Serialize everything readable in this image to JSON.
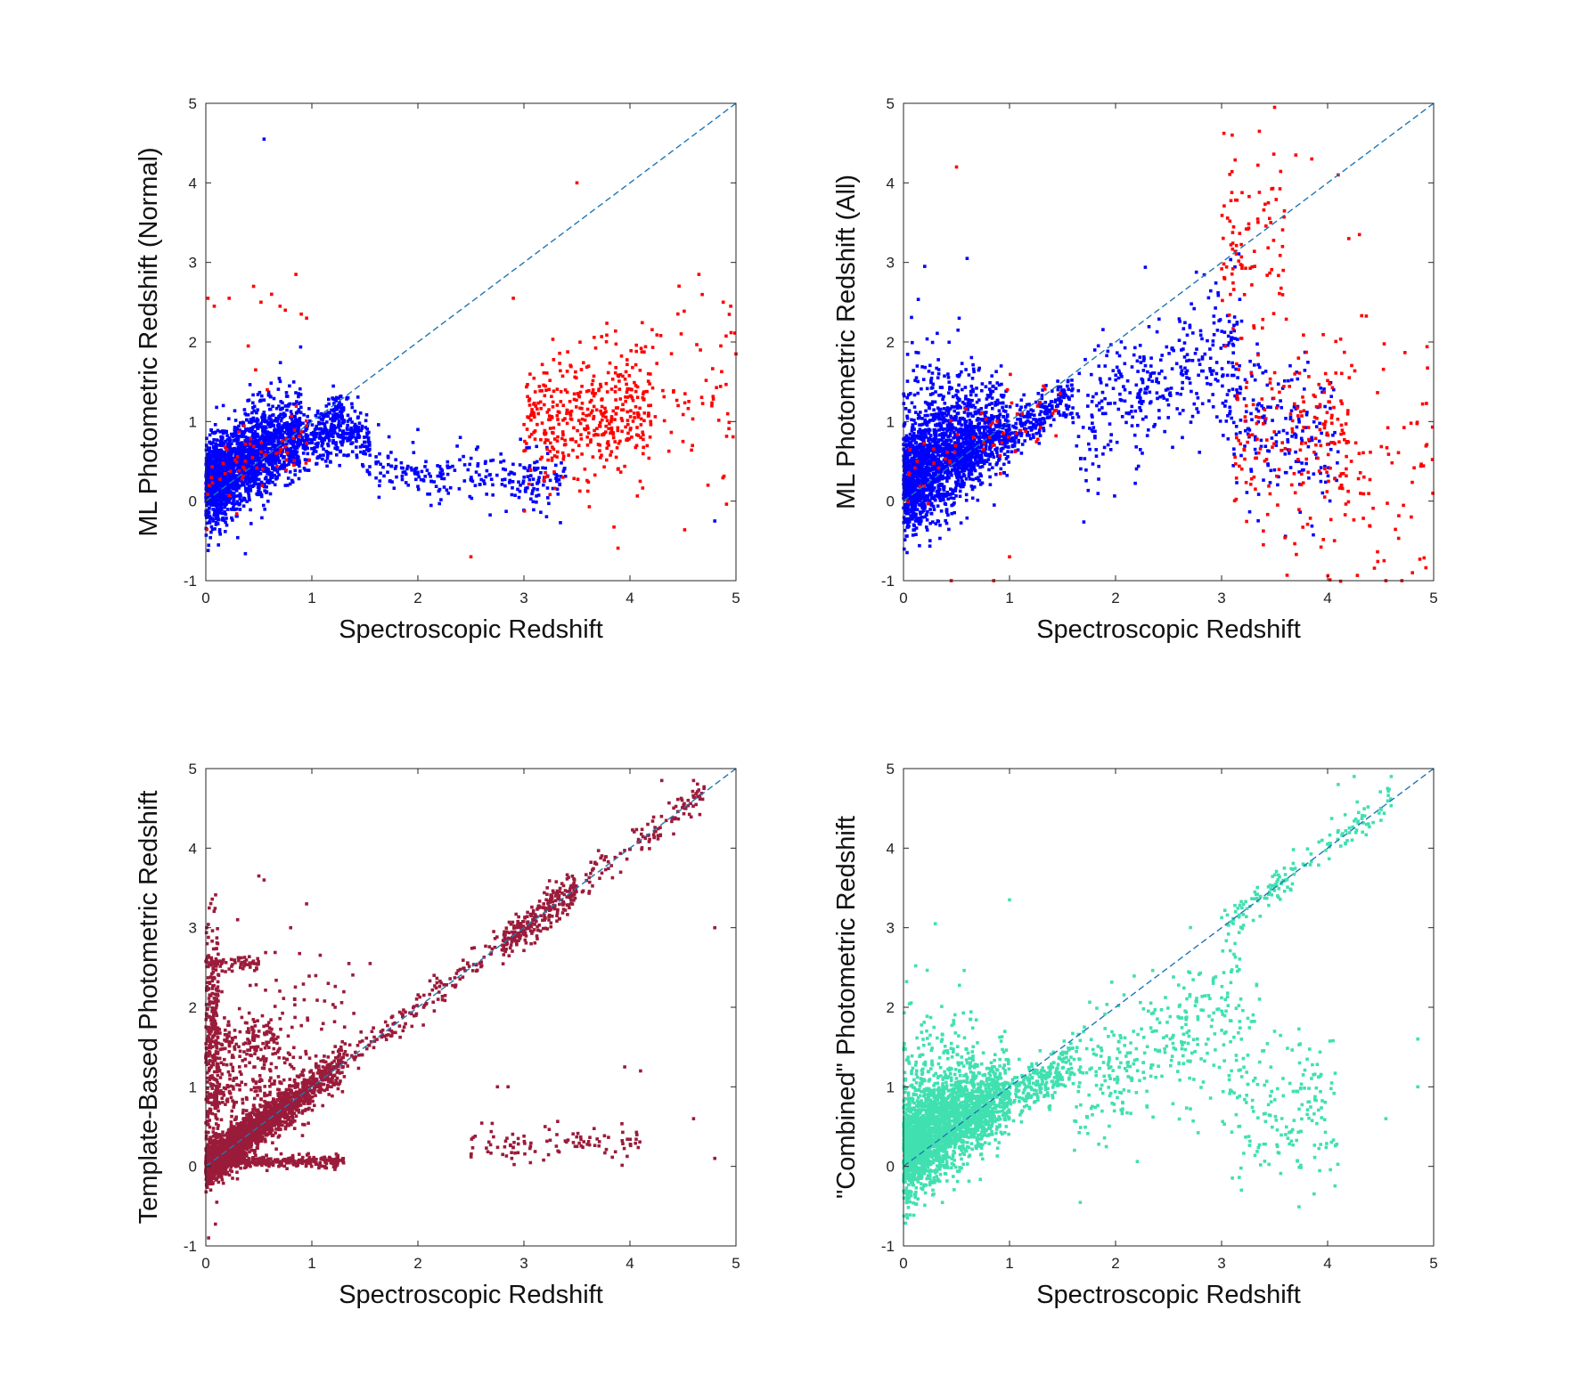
{
  "chart_data": [
    {
      "type": "scatter",
      "id": "ml-normal",
      "title": "",
      "xlabel": "Spectroscopic Redshift",
      "ylabel": "ML Photometric Redshift (Normal)",
      "xlim": [
        0,
        5
      ],
      "ylim": [
        -1,
        5
      ],
      "xticks": [
        0,
        1,
        2,
        3,
        4,
        5
      ],
      "yticks": [
        -1,
        0,
        1,
        2,
        3,
        4,
        5
      ],
      "reference_line": {
        "style": "dashed",
        "color": "#1f77b4",
        "from": [
          0,
          0
        ],
        "to": [
          5,
          5
        ]
      },
      "series": [
        {
          "name": "normal",
          "color": "#0000ff",
          "clusters": [
            {
              "n": 1700,
              "x_range": [
                0,
                0.9
              ],
              "x_dist": "exp",
              "x_scale": 0.45,
              "slope": 0.85,
              "intercept": 0.2,
              "y_sd": 0.28
            },
            {
              "n": 500,
              "x_range": [
                0.4,
                1.3
              ],
              "x_dist": "uniform",
              "slope": 0.6,
              "intercept": 0.2,
              "y_sd": 0.18
            },
            {
              "n": 150,
              "x_range": [
                1.2,
                1.55
              ],
              "x_dist": "uniform",
              "slope": -1.2,
              "intercept": 2.5,
              "y_sd": 0.18
            },
            {
              "n": 250,
              "x_range": [
                1.6,
                3.4
              ],
              "x_dist": "uniform",
              "slope": -0.1,
              "intercept": 0.55,
              "y_sd": 0.18
            }
          ],
          "points": [
            [
              0.55,
              4.55
            ],
            [
              4.8,
              -0.25
            ],
            [
              2.0,
              0.9
            ],
            [
              2.4,
              0.8
            ]
          ]
        },
        {
          "name": "outliers",
          "color": "#ff0000",
          "clusters": [
            {
              "n": 430,
              "x_range": [
                3.0,
                4.2
              ],
              "x_dist": "uniform",
              "slope": 0.2,
              "intercept": 0.35,
              "y_sd": 0.42
            },
            {
              "n": 60,
              "x_range": [
                4.2,
                5.0
              ],
              "x_dist": "uniform",
              "slope": 0.0,
              "intercept": 1.4,
              "y_sd": 0.6
            },
            {
              "n": 60,
              "x_range": [
                0.0,
                1.0
              ],
              "x_dist": "uniform",
              "slope": 0.4,
              "intercept": 0.3,
              "y_sd": 0.25
            }
          ],
          "points": [
            [
              0.02,
              2.55
            ],
            [
              0.08,
              2.45
            ],
            [
              0.22,
              2.55
            ],
            [
              0.45,
              2.7
            ],
            [
              0.52,
              2.5
            ],
            [
              0.62,
              2.6
            ],
            [
              0.7,
              2.45
            ],
            [
              0.75,
              2.4
            ],
            [
              0.85,
              2.85
            ],
            [
              0.9,
              2.35
            ],
            [
              0.95,
              2.3
            ],
            [
              0.4,
              1.95
            ],
            [
              0.47,
              1.65
            ],
            [
              0.58,
              1.4
            ],
            [
              3.5,
              4.0
            ],
            [
              2.5,
              -0.7
            ],
            [
              2.9,
              2.55
            ],
            [
              4.65,
              2.85
            ],
            [
              4.88,
              2.5
            ],
            [
              4.95,
              2.45
            ],
            [
              5.0,
              1.85
            ],
            [
              4.5,
              0.75
            ]
          ]
        }
      ]
    },
    {
      "type": "scatter",
      "id": "ml-all",
      "title": "",
      "xlabel": "Spectroscopic Redshift",
      "ylabel": "ML Photometric Redshift (All)",
      "xlim": [
        0,
        5
      ],
      "ylim": [
        -1,
        5
      ],
      "xticks": [
        0,
        1,
        2,
        3,
        4,
        5
      ],
      "yticks": [
        -1,
        0,
        1,
        2,
        3,
        4,
        5
      ],
      "reference_line": {
        "style": "dashed",
        "color": "#1f77b4",
        "from": [
          0,
          0
        ],
        "to": [
          5,
          5
        ]
      },
      "series": [
        {
          "name": "normal",
          "color": "#0000ff",
          "clusters": [
            {
              "n": 1600,
              "x_range": [
                0,
                1.0
              ],
              "x_dist": "exp",
              "x_scale": 0.45,
              "slope": 0.85,
              "intercept": 0.2,
              "y_sd": 0.32
            },
            {
              "n": 450,
              "x_range": [
                0.5,
                1.6
              ],
              "x_dist": "uniform",
              "slope": 0.75,
              "intercept": 0.1,
              "y_sd": 0.15
            },
            {
              "n": 350,
              "x_range": [
                1.6,
                3.2
              ],
              "x_dist": "uniform",
              "slope": 0.7,
              "intercept": -0.2,
              "y_sd": 0.45
            },
            {
              "n": 200,
              "x_range": [
                3.0,
                4.1
              ],
              "x_dist": "uniform",
              "slope": -0.3,
              "intercept": 2.0,
              "y_sd": 0.45
            },
            {
              "n": 250,
              "x_range": [
                0.0,
                0.7
              ],
              "x_dist": "uniform",
              "slope": 0.0,
              "intercept": 1.1,
              "y_sd": 0.45
            }
          ],
          "points": [
            [
              0.6,
              3.05
            ],
            [
              0.2,
              2.95
            ]
          ]
        },
        {
          "name": "outliers",
          "color": "#ff0000",
          "clusters": [
            {
              "n": 200,
              "x_range": [
                3.1,
                4.2
              ],
              "x_dist": "uniform",
              "slope": 0.0,
              "intercept": 0.75,
              "y_sd": 0.65
            },
            {
              "n": 90,
              "x_range": [
                3.0,
                3.6
              ],
              "x_dist": "uniform",
              "slope": 0.0,
              "intercept": 3.3,
              "y_sd": 0.55
            },
            {
              "n": 80,
              "x_range": [
                4.1,
                5.0
              ],
              "x_dist": "uniform",
              "slope": -0.6,
              "intercept": 3.1,
              "y_sd": 0.9
            },
            {
              "n": 60,
              "x_range": [
                0.0,
                1.5
              ],
              "x_dist": "uniform",
              "slope": 0.6,
              "intercept": 0.35,
              "y_sd": 0.25
            }
          ],
          "points": [
            [
              0.5,
              4.2
            ],
            [
              3.1,
              4.6
            ],
            [
              3.5,
              4.95
            ],
            [
              3.7,
              4.35
            ],
            [
              3.85,
              4.3
            ],
            [
              4.1,
              4.1
            ],
            [
              4.3,
              3.35
            ],
            [
              4.2,
              3.3
            ],
            [
              0.45,
              -1.0
            ],
            [
              0.85,
              -1.0
            ],
            [
              1.0,
              -0.7
            ],
            [
              4.55,
              -1.0
            ],
            [
              4.7,
              -1.0
            ],
            [
              4.8,
              -0.9
            ]
          ]
        }
      ]
    },
    {
      "type": "scatter",
      "id": "template",
      "title": "",
      "xlabel": "Spectroscopic Redshift",
      "ylabel": "Template-Based Photometric Redshift",
      "xlim": [
        0,
        5
      ],
      "ylim": [
        -1,
        5
      ],
      "xticks": [
        0,
        1,
        2,
        3,
        4,
        5
      ],
      "yticks": [
        -1,
        0,
        1,
        2,
        3,
        4,
        5
      ],
      "reference_line": {
        "style": "dashed",
        "color": "#1f77b4",
        "from": [
          0,
          0
        ],
        "to": [
          5,
          5
        ]
      },
      "series": [
        {
          "name": "template",
          "color": "#9b1b3a",
          "clusters": [
            {
              "n": 2600,
              "x_range": [
                0,
                1.3
              ],
              "x_dist": "exp",
              "x_scale": 0.4,
              "slope": 1.0,
              "intercept": 0.0,
              "y_sd": 0.12
            },
            {
              "n": 350,
              "x_range": [
                1.0,
                4.7
              ],
              "x_dist": "uniform",
              "slope": 1.0,
              "intercept": 0.0,
              "y_sd": 0.1
            },
            {
              "n": 200,
              "x_range": [
                2.8,
                3.5
              ],
              "x_dist": "uniform",
              "slope": 1.0,
              "intercept": 0.0,
              "y_sd": 0.12
            },
            {
              "n": 350,
              "x_range": [
                0.0,
                1.3
              ],
              "x_dist": "uniform",
              "slope": 0.0,
              "intercept": 0.06,
              "y_sd": 0.04
            },
            {
              "n": 300,
              "x_range": [
                0.0,
                0.12
              ],
              "x_dist": "uniform",
              "slope": 0.0,
              "intercept": 1.5,
              "y_sd": 0.75
            },
            {
              "n": 250,
              "x_range": [
                0.0,
                1.0
              ],
              "x_dist": "uniform",
              "slope": 0.0,
              "intercept": 1.0,
              "y_sd": 0.3
            },
            {
              "n": 120,
              "x_range": [
                0.1,
                0.7
              ],
              "x_dist": "uniform",
              "slope": 0.0,
              "intercept": 1.55,
              "y_sd": 0.15
            },
            {
              "n": 70,
              "x_range": [
                0.0,
                0.5
              ],
              "x_dist": "uniform",
              "slope": 0.0,
              "intercept": 2.55,
              "y_sd": 0.05
            },
            {
              "n": 100,
              "x_range": [
                2.5,
                4.1
              ],
              "x_dist": "uniform",
              "slope": 0.0,
              "intercept": 0.3,
              "y_sd": 0.12
            },
            {
              "n": 60,
              "x_range": [
                0.0,
                1.5
              ],
              "x_dist": "uniform",
              "slope": 0.0,
              "intercept": 2.0,
              "y_sd": 0.35
            }
          ],
          "points": [
            [
              0.5,
              3.65
            ],
            [
              0.55,
              3.6
            ],
            [
              0.95,
              3.3
            ],
            [
              0.8,
              3.0
            ],
            [
              0.3,
              3.1
            ],
            [
              1.35,
              2.55
            ],
            [
              1.55,
              2.55
            ],
            [
              2.75,
              1.0
            ],
            [
              2.85,
              1.0
            ],
            [
              3.95,
              1.25
            ],
            [
              4.1,
              1.2
            ],
            [
              4.6,
              0.6
            ],
            [
              4.8,
              3.0
            ],
            [
              4.8,
              0.1
            ],
            [
              4.6,
              4.85
            ],
            [
              4.3,
              4.85
            ],
            [
              2.8,
              0.15
            ],
            [
              3.2,
              0.5
            ],
            [
              3.5,
              0.25
            ]
          ]
        }
      ]
    },
    {
      "type": "scatter",
      "id": "combined",
      "title": "",
      "xlabel": "Spectroscopic Redshift",
      "ylabel": "\"Combined\" Photometric Redshift",
      "xlim": [
        0,
        5
      ],
      "ylim": [
        -1,
        5
      ],
      "xticks": [
        0,
        1,
        2,
        3,
        4,
        5
      ],
      "yticks": [
        -1,
        0,
        1,
        2,
        3,
        4,
        5
      ],
      "reference_line": {
        "style": "dashed",
        "color": "#1f77b4",
        "from": [
          0,
          0
        ],
        "to": [
          5,
          5
        ]
      },
      "series": [
        {
          "name": "combined",
          "color": "#40e0b0",
          "clusters": [
            {
              "n": 2200,
              "x_range": [
                0,
                1.0
              ],
              "x_dist": "exp",
              "x_scale": 0.45,
              "slope": 0.8,
              "intercept": 0.2,
              "y_sd": 0.3
            },
            {
              "n": 450,
              "x_range": [
                0.5,
                1.6
              ],
              "x_dist": "uniform",
              "slope": 0.75,
              "intercept": 0.1,
              "y_sd": 0.15
            },
            {
              "n": 320,
              "x_range": [
                1.6,
                3.2
              ],
              "x_dist": "uniform",
              "slope": 0.7,
              "intercept": -0.2,
              "y_sd": 0.45
            },
            {
              "n": 200,
              "x_range": [
                3.0,
                4.1
              ],
              "x_dist": "uniform",
              "slope": -0.3,
              "intercept": 1.9,
              "y_sd": 0.5
            },
            {
              "n": 150,
              "x_range": [
                3.0,
                4.6
              ],
              "x_dist": "uniform",
              "slope": 1.0,
              "intercept": 0.0,
              "y_sd": 0.12
            },
            {
              "n": 250,
              "x_range": [
                0.0,
                0.7
              ],
              "x_dist": "uniform",
              "slope": 0.0,
              "intercept": 1.1,
              "y_sd": 0.45
            }
          ],
          "points": [
            [
              1.0,
              3.35
            ],
            [
              0.3,
              3.05
            ],
            [
              4.1,
              4.8
            ],
            [
              4.25,
              4.9
            ],
            [
              4.6,
              4.9
            ],
            [
              4.5,
              4.5
            ],
            [
              4.85,
              1.6
            ],
            [
              4.85,
              1.0
            ],
            [
              4.55,
              0.6
            ]
          ]
        }
      ]
    }
  ]
}
